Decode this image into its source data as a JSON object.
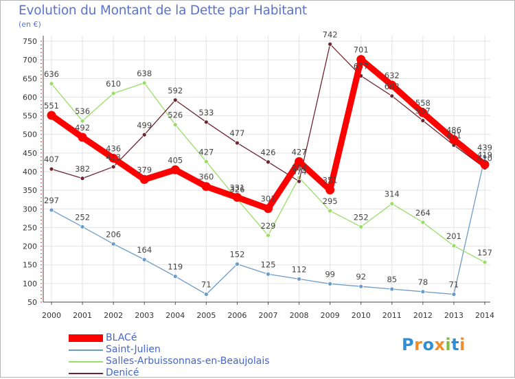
{
  "header": {
    "title": "Evolution du Montant de la Dette par Habitant",
    "subtitle": "(en €)"
  },
  "logo": {
    "text": "Proxiti",
    "colors": [
      "#2f8fd6",
      "#f28c28",
      "#2f8fd6",
      "#f28c28",
      "#7bc043",
      "#2f8fd6",
      "#f28c28"
    ]
  },
  "chart_data": {
    "type": "line",
    "title": "Evolution du Montant de la Dette par Habitant",
    "subtitle": "(en €)",
    "xlabel": "",
    "ylabel": "",
    "x": [
      "2000",
      "2001",
      "2002",
      "2003",
      "2004",
      "2005",
      "2006",
      "2007",
      "2008",
      "2009",
      "2010",
      "2011",
      "2012",
      "2013",
      "2014"
    ],
    "ylim": [
      50,
      750
    ],
    "yticks": [
      50,
      100,
      150,
      200,
      250,
      300,
      350,
      400,
      450,
      500,
      550,
      600,
      650,
      700,
      750
    ],
    "grid": true,
    "legend_position": "bottom-left",
    "series": [
      {
        "name": "BLACé",
        "color": "#ff0000",
        "values": [
          551,
          492,
          436,
          379,
          405,
          360,
          331,
          301,
          427,
          351,
          701,
          632,
          558,
          486,
          419
        ]
      },
      {
        "name": "Saint-Julien",
        "color": "#6b9bc8",
        "values": [
          297,
          252,
          206,
          164,
          119,
          71,
          152,
          125,
          112,
          99,
          92,
          85,
          78,
          71,
          439
        ]
      },
      {
        "name": "Salles-Arbuissonnas-en-Beaujolais",
        "color": "#99dd66",
        "values": [
          636,
          536,
          610,
          638,
          526,
          427,
          326,
          229,
          384,
          295,
          252,
          314,
          264,
          201,
          157
        ]
      },
      {
        "name": "Denicé",
        "color": "#6b2530",
        "values": [
          407,
          382,
          413,
          499,
          592,
          533,
          477,
          426,
          374,
          742,
          657,
          603,
          537,
          471,
          410
        ]
      }
    ],
    "data_labels": [
      [
        "551",
        "492",
        "436",
        "379",
        "405",
        "360",
        "331",
        "301",
        "427",
        "351",
        "701",
        "632",
        "558",
        "486",
        "419"
      ],
      [
        "297",
        "252",
        "206",
        "164",
        "119",
        "71",
        "152",
        "125",
        "112",
        "99",
        "92",
        "85",
        "78",
        "71",
        "439"
      ],
      [
        "636",
        "536",
        "610",
        "638",
        "526",
        "427",
        "326",
        "229",
        "384",
        "295",
        "252",
        "314",
        "264",
        "201",
        "157"
      ],
      [
        "407",
        "382",
        "413",
        "499",
        "592",
        "533",
        "477",
        "426",
        "374",
        "742",
        "657",
        "603",
        "537",
        "471",
        "410"
      ]
    ]
  }
}
